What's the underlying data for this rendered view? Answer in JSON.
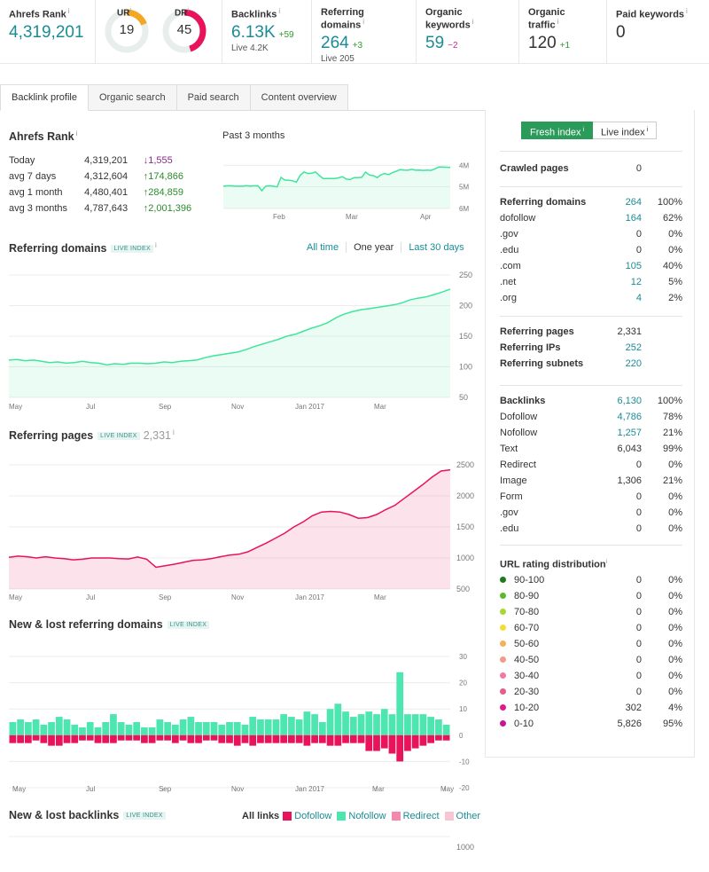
{
  "metrics": {
    "ahrefs_rank": {
      "label": "Ahrefs Rank",
      "value": "4,319,201"
    },
    "ur": {
      "label": "UR",
      "value": "19",
      "fraction": 0.19,
      "color": "#f5a623"
    },
    "dr": {
      "label": "DR",
      "value": "45",
      "fraction": 0.45,
      "color": "#e8135b"
    },
    "backlinks": {
      "label": "Backlinks",
      "value": "6.13K",
      "delta": "+59",
      "sub": "Live 4.2K"
    },
    "referring_domains": {
      "label": "Referring domains",
      "value": "264",
      "delta": "+3",
      "sub": "Live 205"
    },
    "organic_keywords": {
      "label": "Organic keywords",
      "value": "59",
      "delta": "−2"
    },
    "organic_traffic": {
      "label": "Organic traffic",
      "value": "120",
      "delta": "+1"
    },
    "paid_keywords": {
      "label": "Paid keywords",
      "value": "0"
    },
    "info": "i"
  },
  "tabs": [
    "Backlink profile",
    "Organic search",
    "Paid search",
    "Content overview"
  ],
  "ahrefs_rank_section": {
    "title": "Ahrefs Rank",
    "past_label": "Past 3 months",
    "rows": [
      {
        "period": "Today",
        "rank": "4,319,201",
        "change": "↓1,555",
        "dir": "down"
      },
      {
        "period": "avg 7 days",
        "rank": "4,312,604",
        "change": "↑174,866",
        "dir": "up"
      },
      {
        "period": "avg 1 month",
        "rank": "4,480,401",
        "change": "↑284,859",
        "dir": "up"
      },
      {
        "period": "avg 3 months",
        "rank": "4,787,643",
        "change": "↑2,001,396",
        "dir": "up"
      }
    ]
  },
  "referring_domains_section": {
    "title": "Referring domains",
    "badge": "LIVE INDEX",
    "ranges": [
      "All time",
      "One year",
      "Last 30 days"
    ]
  },
  "referring_pages_section": {
    "title": "Referring pages",
    "badge": "LIVE INDEX",
    "count": "2,331"
  },
  "new_lost_domains_section": {
    "title": "New & lost referring domains",
    "badge": "LIVE INDEX"
  },
  "new_lost_backlinks_section": {
    "title": "New & lost backlinks",
    "badge": "LIVE INDEX",
    "legend": [
      {
        "label": "All links",
        "color": ""
      },
      {
        "label": "Dofollow",
        "color": "#e8135b"
      },
      {
        "label": "Nofollow",
        "color": "#4ee6b0"
      },
      {
        "label": "Redirect",
        "color": "#f28ab0"
      },
      {
        "label": "Other",
        "color": "#f7c6d5"
      }
    ],
    "ytick": "1000"
  },
  "index_toggle": {
    "fresh": "Fresh index",
    "live": "Live index"
  },
  "right_panel": {
    "crawled": [
      {
        "k": "Crawled pages",
        "v": "0",
        "p": "",
        "bold": true,
        "link": false
      }
    ],
    "domains": [
      {
        "k": "Referring domains",
        "v": "264",
        "p": "100%",
        "bold": true,
        "link": true
      },
      {
        "k": "dofollow",
        "v": "164",
        "p": "62%",
        "bold": false,
        "link": true
      },
      {
        "k": ".gov",
        "v": "0",
        "p": "0%",
        "bold": false,
        "link": false
      },
      {
        "k": ".edu",
        "v": "0",
        "p": "0%",
        "bold": false,
        "link": false
      },
      {
        "k": ".com",
        "v": "105",
        "p": "40%",
        "bold": false,
        "link": true
      },
      {
        "k": ".net",
        "v": "12",
        "p": "5%",
        "bold": false,
        "link": true
      },
      {
        "k": ".org",
        "v": "4",
        "p": "2%",
        "bold": false,
        "link": true
      }
    ],
    "pages": [
      {
        "k": "Referring pages",
        "v": "2,331",
        "p": "",
        "bold": true,
        "link": false
      },
      {
        "k": "Referring IPs",
        "v": "252",
        "p": "",
        "bold": true,
        "link": true
      },
      {
        "k": "Referring subnets",
        "v": "220",
        "p": "",
        "bold": true,
        "link": true
      }
    ],
    "backlinks": [
      {
        "k": "Backlinks",
        "v": "6,130",
        "p": "100%",
        "bold": true,
        "link": true
      },
      {
        "k": "Dofollow",
        "v": "4,786",
        "p": "78%",
        "bold": false,
        "link": true
      },
      {
        "k": "Nofollow",
        "v": "1,257",
        "p": "21%",
        "bold": false,
        "link": true
      },
      {
        "k": "Text",
        "v": "6,043",
        "p": "99%",
        "bold": false,
        "link": false
      },
      {
        "k": "Redirect",
        "v": "0",
        "p": "0%",
        "bold": false,
        "link": false
      },
      {
        "k": "Image",
        "v": "1,306",
        "p": "21%",
        "bold": false,
        "link": false
      },
      {
        "k": "Form",
        "v": "0",
        "p": "0%",
        "bold": false,
        "link": false
      },
      {
        "k": ".gov",
        "v": "0",
        "p": "0%",
        "bold": false,
        "link": false
      },
      {
        "k": ".edu",
        "v": "0",
        "p": "0%",
        "bold": false,
        "link": false
      }
    ],
    "url_rating_title": "URL rating distribution",
    "url_rating": [
      {
        "k": "90-100",
        "v": "0",
        "p": "0%",
        "color": "#1f7a1f"
      },
      {
        "k": "80-90",
        "v": "0",
        "p": "0%",
        "color": "#5cb82e"
      },
      {
        "k": "70-80",
        "v": "0",
        "p": "0%",
        "color": "#a6d933"
      },
      {
        "k": "60-70",
        "v": "0",
        "p": "0%",
        "color": "#f2dd3a"
      },
      {
        "k": "50-60",
        "v": "0",
        "p": "0%",
        "color": "#f5b15a"
      },
      {
        "k": "40-50",
        "v": "0",
        "p": "0%",
        "color": "#f29b8a"
      },
      {
        "k": "30-40",
        "v": "0",
        "p": "0%",
        "color": "#f07aa0"
      },
      {
        "k": "20-30",
        "v": "0",
        "p": "0%",
        "color": "#e85a8e"
      },
      {
        "k": "10-20",
        "v": "302",
        "p": "4%",
        "color": "#e01a84"
      },
      {
        "k": "0-10",
        "v": "5,826",
        "p": "95%",
        "color": "#c8149a"
      }
    ]
  },
  "chart_data": [
    {
      "id": "rank",
      "type": "area",
      "x_labels": [
        "Feb",
        "Mar",
        "Apr"
      ],
      "y_ticks": [
        "4M",
        "5M",
        "6M"
      ],
      "ylim": [
        6000000,
        3700000
      ],
      "values": [
        4970000,
        4950000,
        4950000,
        4960000,
        4970000,
        4970000,
        4940000,
        4960000,
        4950000,
        4950000,
        5180000,
        4970000,
        4950000,
        4970000,
        5000000,
        4560000,
        4690000,
        4690000,
        4720000,
        4780000,
        4460000,
        4310000,
        4380000,
        4370000,
        4310000,
        4480000,
        4620000,
        4610000,
        4610000,
        4610000,
        4580000,
        4530000,
        4640000,
        4660000,
        4570000,
        4570000,
        4560000,
        4310000,
        4450000,
        4480000,
        4570000,
        4440000,
        4380000,
        4430000,
        4340000,
        4270000,
        4200000,
        4220000,
        4230000,
        4190000,
        4230000,
        4220000,
        4240000,
        4220000,
        4240000,
        4170000,
        4080000,
        4080000,
        4090000,
        4100000
      ],
      "color": "#3fe69a"
    },
    {
      "id": "refdomains",
      "type": "area",
      "x_labels": [
        "May",
        "Jul",
        "Sep",
        "Nov",
        "Jan 2017",
        "Mar"
      ],
      "y_ticks": [
        "50",
        "100",
        "150",
        "200",
        "250"
      ],
      "ylim": [
        50,
        250
      ],
      "values": [
        111,
        112,
        110,
        111,
        109,
        107,
        108,
        106,
        107,
        109,
        107,
        106,
        103,
        105,
        104,
        106,
        106,
        105,
        106,
        108,
        107,
        109,
        110,
        111,
        115,
        118,
        120,
        122,
        124,
        128,
        133,
        137,
        141,
        145,
        150,
        153,
        158,
        163,
        167,
        172,
        180,
        186,
        190,
        193,
        195,
        197,
        199,
        201,
        204,
        209,
        212,
        214,
        218,
        222,
        227
      ],
      "color": "#3fe69a"
    },
    {
      "id": "refpages",
      "type": "area",
      "x_labels": [
        "May",
        "Jul",
        "Sep",
        "Nov",
        "Jan 2017",
        "Mar"
      ],
      "y_ticks": [
        "500",
        "1000",
        "1500",
        "2000",
        "2500"
      ],
      "ylim": [
        500,
        2500
      ],
      "values": [
        1010,
        1030,
        1020,
        1000,
        1020,
        1000,
        990,
        970,
        980,
        1000,
        1000,
        1000,
        990,
        985,
        1015,
        980,
        850,
        875,
        900,
        930,
        960,
        970,
        990,
        1020,
        1045,
        1060,
        1100,
        1170,
        1240,
        1320,
        1400,
        1500,
        1580,
        1680,
        1740,
        1750,
        1740,
        1700,
        1640,
        1650,
        1700,
        1780,
        1850,
        1960,
        2070,
        2180,
        2300,
        2400,
        2420
      ],
      "color": "#e8135b"
    },
    {
      "id": "newlost",
      "type": "bar",
      "x_labels": [
        "May",
        "Jul",
        "Sep",
        "Nov",
        "Jan 2017",
        "Mar",
        "May"
      ],
      "y_ticks": [
        "-20",
        "-10",
        "0",
        "10",
        "20",
        "30"
      ],
      "ylim": [
        -20,
        30
      ],
      "new": [
        5,
        6,
        5,
        6,
        4,
        5,
        7,
        6,
        4,
        3,
        5,
        3,
        5,
        8,
        5,
        4,
        5,
        3,
        3,
        6,
        5,
        4,
        6,
        7,
        5,
        5,
        5,
        4,
        5,
        5,
        4,
        7,
        6,
        6,
        6,
        8,
        7,
        6,
        9,
        8,
        5,
        10,
        12,
        9,
        7,
        8,
        9,
        8,
        10,
        8,
        24,
        8,
        8,
        8,
        7,
        6,
        4
      ],
      "lost": [
        -3,
        -3,
        -3,
        -2,
        -3,
        -4,
        -4,
        -3,
        -3,
        -2,
        -2,
        -3,
        -3,
        -3,
        -2,
        -2,
        -2,
        -3,
        -3,
        -2,
        -2,
        -3,
        -2,
        -3,
        -3,
        -2,
        -2,
        -3,
        -3,
        -4,
        -3,
        -4,
        -3,
        -3,
        -3,
        -3,
        -3,
        -3,
        -4,
        -3,
        -3,
        -4,
        -4,
        -3,
        -3,
        -3,
        -6,
        -6,
        -5,
        -7,
        -10,
        -6,
        -5,
        -4,
        -3,
        -2,
        -2
      ],
      "new_color": "#4ee6b0",
      "lost_color": "#e8135b"
    }
  ]
}
